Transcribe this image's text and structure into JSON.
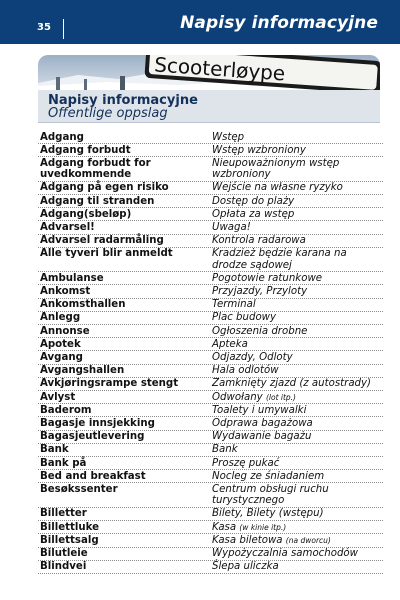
{
  "header": {
    "page_number": "35",
    "title": "Napisy informacyjne"
  },
  "photo": {
    "sign_text": "Scooterløype"
  },
  "section": {
    "title": "Napisy informacyjne",
    "subtitle": "Offentlige oppslag"
  },
  "entries": [
    {
      "term": "Adgang",
      "translation": "Wstęp"
    },
    {
      "term": "Adgang forbudt",
      "translation": "Wstęp wzbroniony"
    },
    {
      "term": "Adgang forbudt for uvedkommende",
      "translation": "Nieupoważnionym wstęp wzbroniony"
    },
    {
      "term": "Adgang på egen risiko",
      "translation": "Wejście na własne ryzyko"
    },
    {
      "term": "Adgang til stranden",
      "translation": "Dostęp do plaży"
    },
    {
      "term": "Adgang(sbeløp)",
      "translation": "Opłata za wstęp"
    },
    {
      "term": "Advarsel!",
      "translation": "Uwaga!"
    },
    {
      "term": "Advarsel radarmåling",
      "translation": "Kontrola radarowa"
    },
    {
      "term": "Alle tyveri blir anmeldt",
      "translation": "Kradzież będzie karana na drodze sądowej"
    },
    {
      "term": "Ambulanse",
      "translation": "Pogotowie ratunkowe"
    },
    {
      "term": "Ankomst",
      "translation": "Przyjazdy, Przyloty"
    },
    {
      "term": "Ankomsthallen",
      "translation": "Terminal"
    },
    {
      "term": "Anlegg",
      "translation": "Plac budowy"
    },
    {
      "term": "Annonse",
      "translation": "Ogłoszenia drobne"
    },
    {
      "term": "Apotek",
      "translation": "Apteka"
    },
    {
      "term": "Avgang",
      "translation": "Odjazdy, Odloty"
    },
    {
      "term": "Avgangshallen",
      "translation": "Hala odlotów"
    },
    {
      "term": "Avkjøringsrampe stengt",
      "translation": "Zamknięty zjazd (z autostrady)"
    },
    {
      "term": "Avlyst",
      "translation": "Odwołany",
      "note": "(lot itp.)"
    },
    {
      "term": "Baderom",
      "translation": "Toalety i umywalki"
    },
    {
      "term": "Bagasje innsjekking",
      "translation": "Odprawa bagażowa"
    },
    {
      "term": "Bagasjeutlevering",
      "translation": "Wydawanie bagażu"
    },
    {
      "term": "Bank",
      "translation": "Bank"
    },
    {
      "term": "Bank på",
      "translation": "Proszę pukać"
    },
    {
      "term": "Bed and breakfast",
      "translation": "Nocleg ze śniadaniem"
    },
    {
      "term": "Besøkssenter",
      "translation": "Centrum obsługi ruchu turystycznego"
    },
    {
      "term": "Billetter",
      "translation": "Bilety, Bilety (wstępu)"
    },
    {
      "term": "Billettluke",
      "translation": "Kasa",
      "note": "(w kinie itp.)"
    },
    {
      "term": "Billettsalg",
      "translation": "Kasa biletowa",
      "note": "(na dworcu)"
    },
    {
      "term": "Bilutleie",
      "translation": "Wypożyczalnia samochodów"
    },
    {
      "term": "Blindvei",
      "translation": "Ślepa uliczka"
    }
  ]
}
